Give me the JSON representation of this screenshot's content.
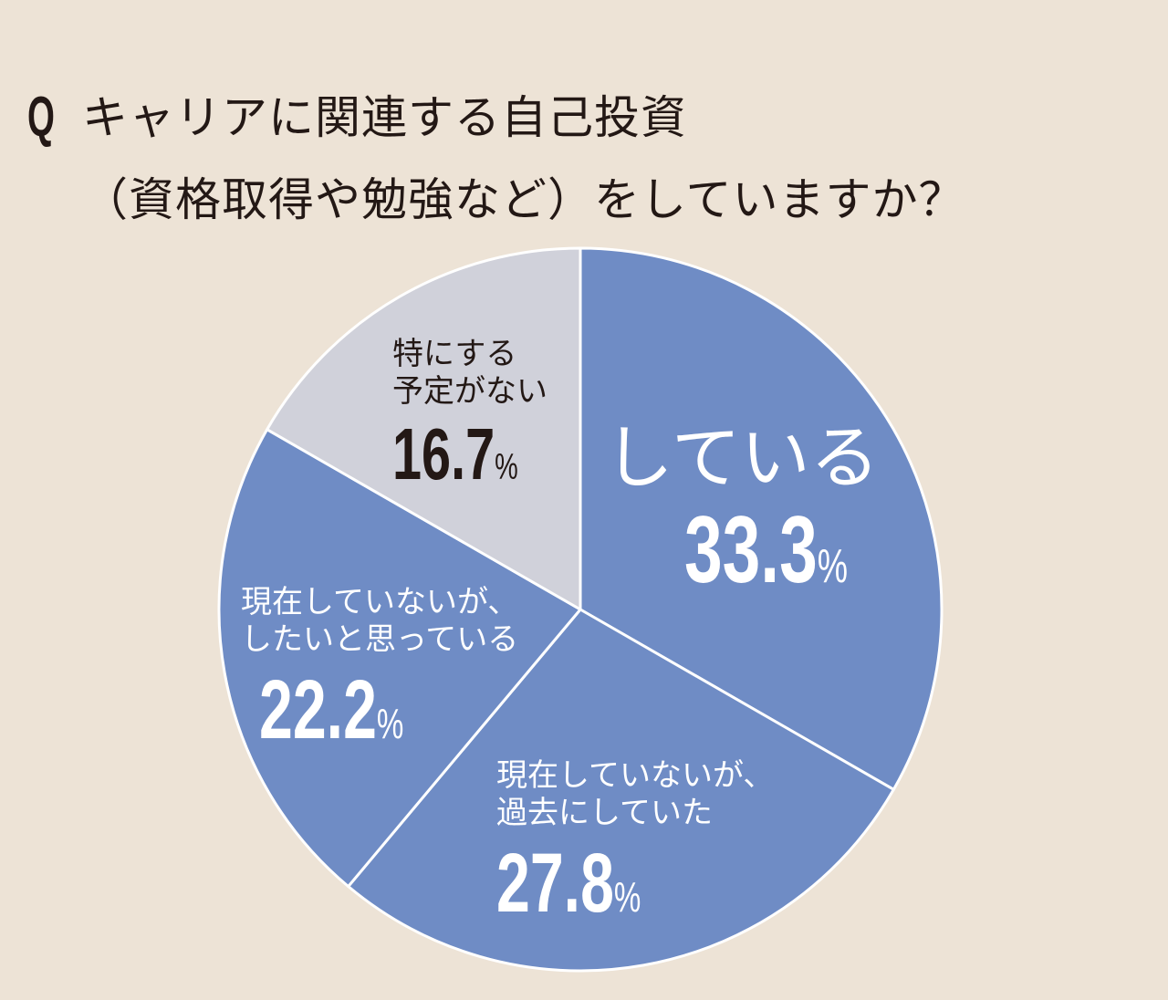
{
  "question": {
    "marker": "Q",
    "line1": "キャリアに関連する自己投資",
    "line2": "（資格取得や勉強など）をしていますか？"
  },
  "colors": {
    "background": "#ede3d6",
    "blue": "#6f8cc5",
    "gray": "#d0d1da",
    "divider": "#ffffff",
    "text_dark": "#231815",
    "text_light": "#ffffff"
  },
  "slices": [
    {
      "label_lines": [
        "している"
      ],
      "value": "33.3",
      "pct": "%"
    },
    {
      "label_lines": [
        "現在していないが、",
        "過去にしていた"
      ],
      "value": "27.8",
      "pct": "%"
    },
    {
      "label_lines": [
        "現在していないが、",
        "したいと思っている"
      ],
      "value": "22.2",
      "pct": "%"
    },
    {
      "label_lines": [
        "特にする",
        "予定がない"
      ],
      "value": "16.7",
      "pct": "%"
    }
  ],
  "chart_data": {
    "type": "pie",
    "title": "キャリアに関連する自己投資（資格取得や勉強など）をしていますか？",
    "categories": [
      "している",
      "現在していないが、過去にしていた",
      "現在していないが、したいと思っている",
      "特にする予定がない"
    ],
    "values": [
      33.3,
      27.8,
      22.2,
      16.7
    ],
    "unit": "%",
    "start_angle": "12 o'clock, clockwise",
    "slice_colors": [
      "#6f8cc5",
      "#6f8cc5",
      "#6f8cc5",
      "#d0d1da"
    ]
  }
}
